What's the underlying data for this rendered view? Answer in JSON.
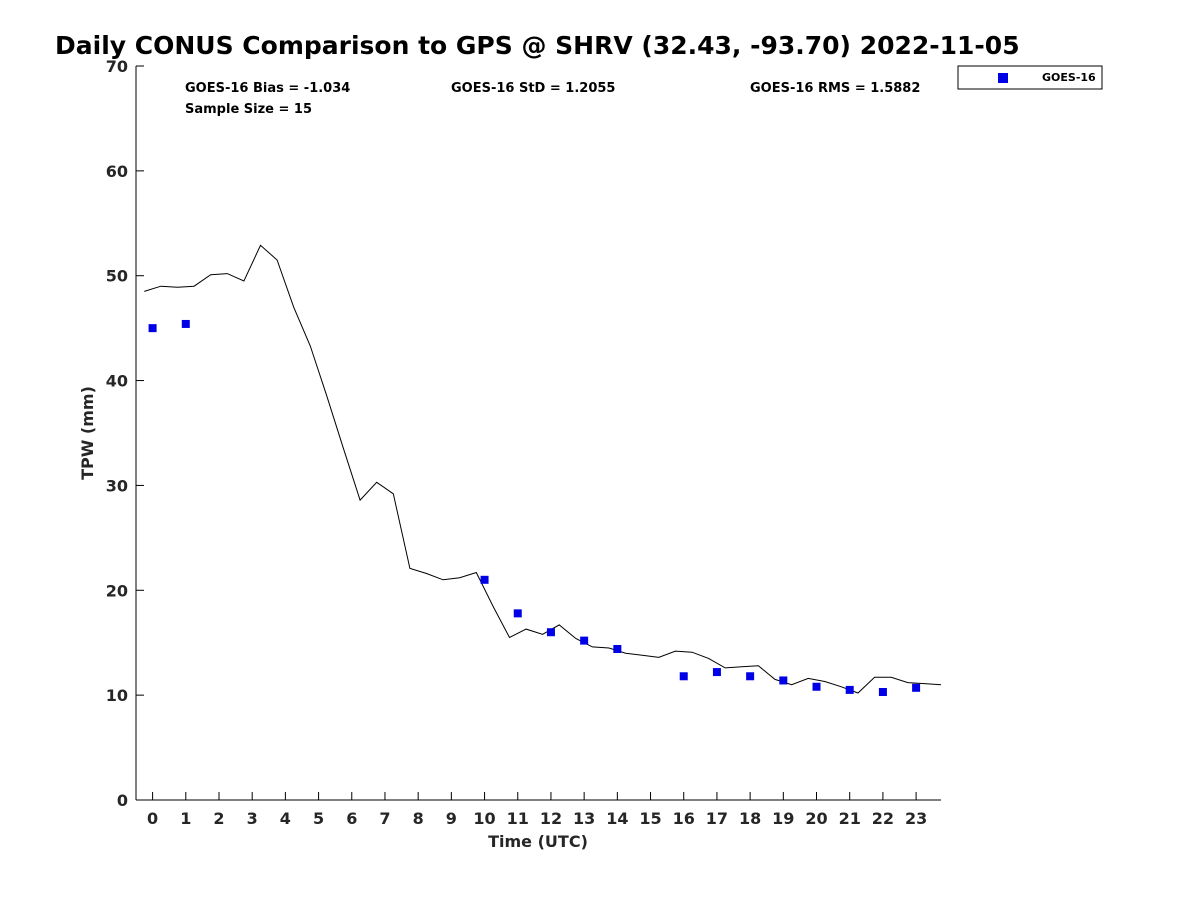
{
  "chart_data": {
    "type": "line",
    "title": "Daily CONUS Comparison to GPS @ SHRV (32.43, -93.70) 2022-11-05",
    "xlabel": "Time (UTC)",
    "ylabel": "TPW (mm)",
    "xlim": [
      -0.5,
      23.75
    ],
    "ylim": [
      0,
      70
    ],
    "xticks": [
      0,
      1,
      2,
      3,
      4,
      5,
      6,
      7,
      8,
      9,
      10,
      11,
      12,
      13,
      14,
      15,
      16,
      17,
      18,
      19,
      20,
      21,
      22,
      23
    ],
    "yticks": [
      0,
      10,
      20,
      30,
      40,
      50,
      60,
      70
    ],
    "grid": false,
    "legend_position": "outside-top-right",
    "stats": {
      "bias": "GOES-16 Bias = -1.034",
      "std": "GOES-16 StD = 1.2055",
      "rms": "GOES-16 RMS = 1.5882",
      "sample": "Sample Size = 15"
    },
    "series": [
      {
        "kind": "line",
        "color": "#000000",
        "x": [
          -0.25,
          0.25,
          0.75,
          1.25,
          1.75,
          2.25,
          2.75,
          3.25,
          3.75,
          4.25,
          4.75,
          5.25,
          5.75,
          6.25,
          6.75,
          7.25,
          7.75,
          8.25,
          8.75,
          9.25,
          9.75,
          10.25,
          10.75,
          11.25,
          11.75,
          12.25,
          12.75,
          13.25,
          13.75,
          14.25,
          14.75,
          15.25,
          15.75,
          16.25,
          16.75,
          17.25,
          17.75,
          18.25,
          18.75,
          19.25,
          19.75,
          20.25,
          20.75,
          21.25,
          21.75,
          22.25,
          22.75,
          23.25,
          23.75
        ],
        "values": [
          48.5,
          49.0,
          48.9,
          49.0,
          50.1,
          50.2,
          49.5,
          52.9,
          51.5,
          47.0,
          43.3,
          38.5,
          33.5,
          28.6,
          30.3,
          29.2,
          22.1,
          21.6,
          21.0,
          21.2,
          21.7,
          18.5,
          15.5,
          16.3,
          15.8,
          16.7,
          15.4,
          14.6,
          14.5,
          14.0,
          13.8,
          13.6,
          14.2,
          14.1,
          13.5,
          12.6,
          12.7,
          12.8,
          11.5,
          11.0,
          11.6,
          11.3,
          10.8,
          10.2,
          11.7,
          11.7,
          11.2,
          11.1,
          11.0
        ]
      },
      {
        "kind": "scatter",
        "name": "GOES-16",
        "color": "#0000e6",
        "marker": "square",
        "x": [
          0,
          1,
          10,
          11,
          12,
          13,
          14,
          16,
          17,
          18,
          19,
          20,
          21,
          22,
          23
        ],
        "values": [
          45.0,
          45.4,
          21.0,
          17.8,
          16.0,
          15.2,
          14.4,
          11.8,
          12.2,
          11.8,
          11.4,
          10.8,
          10.5,
          10.3,
          10.7
        ]
      }
    ]
  }
}
